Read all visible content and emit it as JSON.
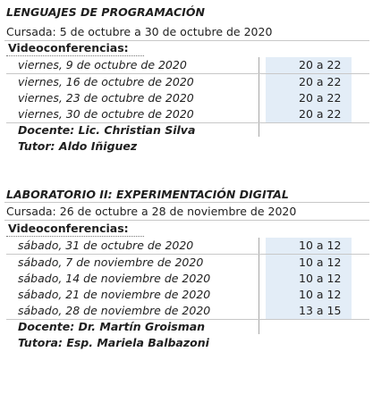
{
  "course1": {
    "title": "LENGUAJES DE PROGRAMACIÓN",
    "cursada": "Cursada: 5 de octubre a 30 de octubre de 2020",
    "videoconf_label": "Videoconferencias:",
    "sessions": [
      {
        "date": "viernes, 9 de octubre de 2020",
        "time": "20 a 22"
      },
      {
        "date": "viernes, 16 de octubre de 2020",
        "time": "20 a 22"
      },
      {
        "date": "viernes, 23 de octubre de 2020",
        "time": "20 a 22"
      },
      {
        "date": "viernes, 30 de octubre de 2020",
        "time": "20 a 22"
      }
    ],
    "docente": "Docente: Lic. Christian Silva",
    "tutor": "Tutor: Aldo Iñiguez"
  },
  "course2": {
    "title": "LABORATORIO II: EXPERIMENTACIÓN DIGITAL",
    "cursada": "Cursada: 26 de octubre a 28 de noviembre de 2020",
    "videoconf_label": "Videoconferencias:",
    "sessions": [
      {
        "date": "sábado, 31 de octubre de 2020",
        "time": "10 a 12"
      },
      {
        "date": "sábado, 7 de noviembre de 2020",
        "time": "10 a 12"
      },
      {
        "date": "sábado, 14 de noviembre de 2020",
        "time": "10 a 12"
      },
      {
        "date": "sábado, 21 de noviembre de 2020",
        "time": "10 a 12"
      },
      {
        "date": "sábado, 28 de noviembre de 2020",
        "time": "13 a 15"
      }
    ],
    "docente": "Docente: Dr. Martín Groisman",
    "tutor": "Tutora: Esp. Mariela Balbazoni"
  }
}
